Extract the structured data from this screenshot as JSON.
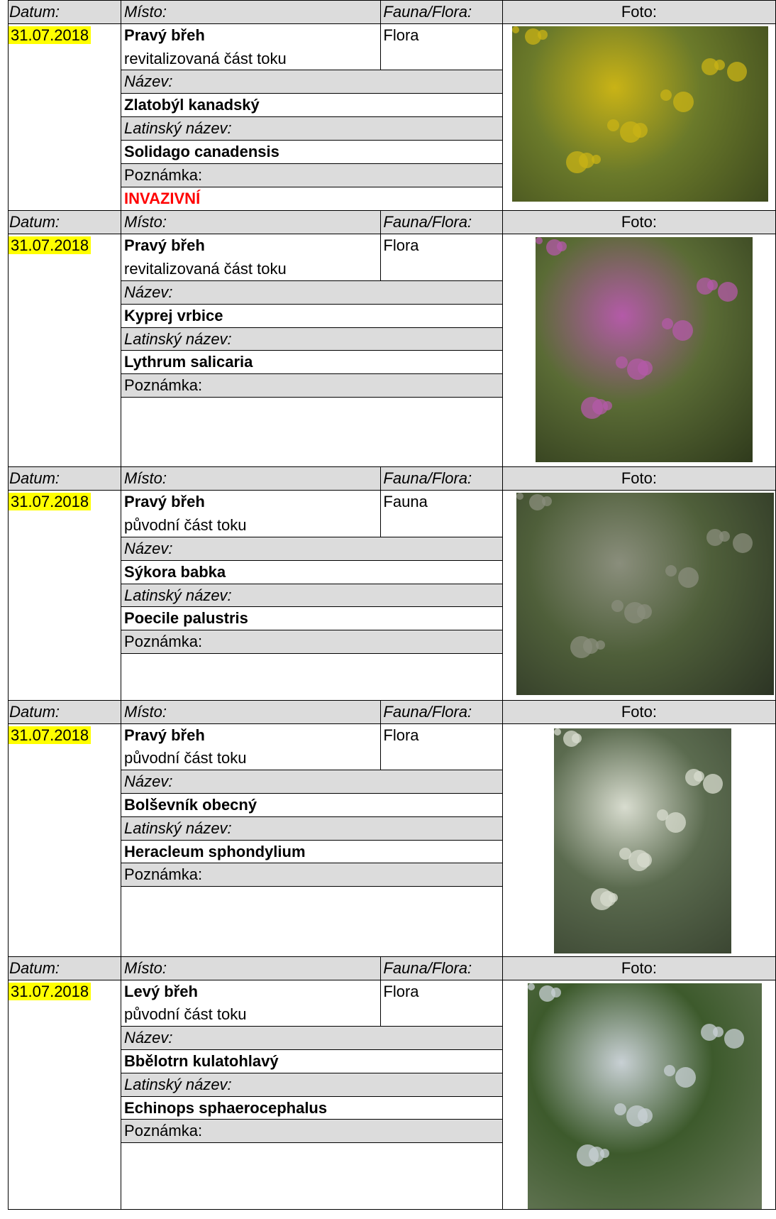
{
  "labels": {
    "date": "Datum:",
    "place": "Místo:",
    "type": "Fauna/Flora:",
    "photo": "Foto:",
    "name": "Název:",
    "latin": "Latinský název:",
    "note": "Poznámka:"
  },
  "records": [
    {
      "date": "31.07.2018",
      "place": "Pravý břeh",
      "place_detail": "revitalizovaná část toku",
      "type": "Flora",
      "name": "Zlatobýl kanadský",
      "latin_name": "Solidago canadensis",
      "note": "INVAZIVNÍ"
    },
    {
      "date": "31.07.2018",
      "place": "Pravý břeh",
      "place_detail": "revitalizovaná část toku",
      "type": "Flora",
      "name": "Kyprej vrbice",
      "latin_name": "Lythrum salicaria"
    },
    {
      "date": "31.07.2018",
      "place": "Pravý břeh",
      "place_detail": "původní část toku",
      "type": "Fauna",
      "name": "Sýkora babka",
      "latin_name": "Poecile palustris"
    },
    {
      "date": "31.07.2018",
      "place": "Pravý břeh",
      "place_detail": "původní část toku",
      "type": "Flora",
      "name": "Bolševník obecný",
      "latin_name": "Heracleum sphondylium"
    },
    {
      "date": "31.07.2018",
      "place": "Levý břeh",
      "place_detail": "původní část toku",
      "type": "Flora",
      "name": "Bbělotrn kulatohlavý",
      "latin_name": "Echinops sphaerocephalus"
    }
  ]
}
